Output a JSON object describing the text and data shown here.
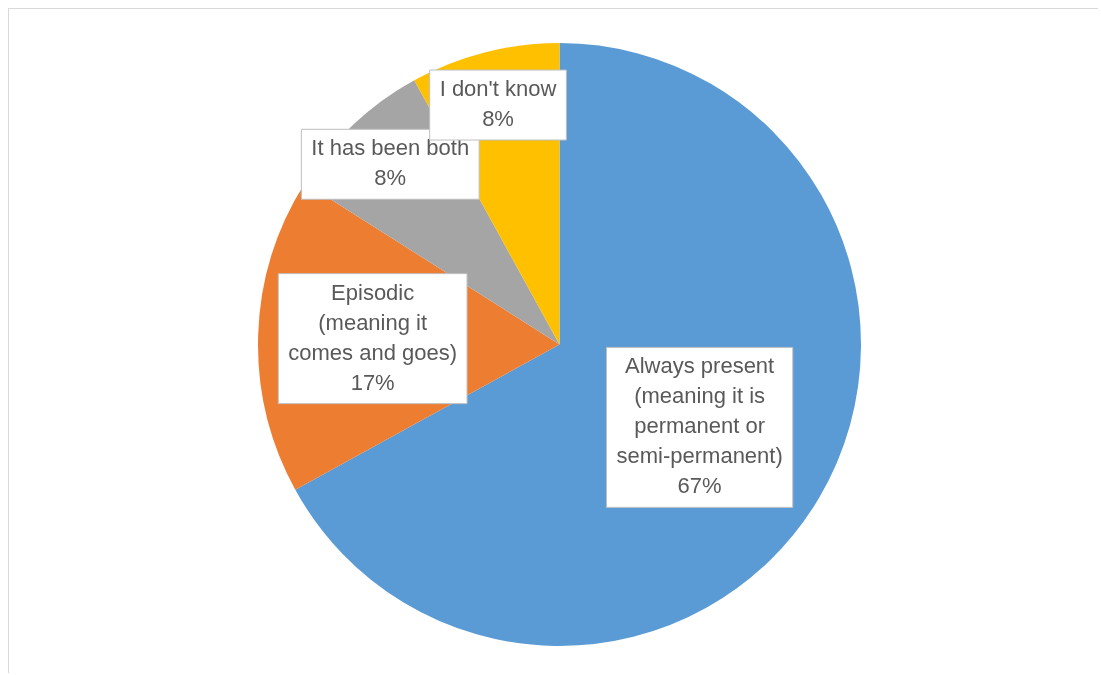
{
  "chart_data": {
    "type": "pie",
    "categories": [
      "Always present (meaning it is permanent or semi-permanent)",
      "Episodic (meaning it comes and goes)",
      "It has been both",
      "I don't know"
    ],
    "values": [
      67,
      17,
      8,
      8
    ],
    "colors": [
      "#5b9bd5",
      "#ed7d31",
      "#a5a5a5",
      "#ffc000"
    ],
    "value_labels": [
      "67%",
      "17%",
      "8%",
      "8%"
    ],
    "legend": false
  }
}
